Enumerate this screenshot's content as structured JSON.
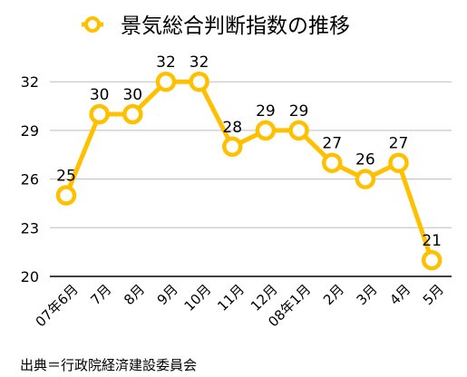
{
  "chart_data": {
    "type": "line",
    "title": "景気総合判断指数の推移",
    "x": [
      "07年6月",
      "7月",
      "8月",
      "9月",
      "10月",
      "11月",
      "12月",
      "08年1月",
      "2月",
      "3月",
      "4月",
      "5月"
    ],
    "series": [
      {
        "name": "",
        "values": [
          25,
          30,
          30,
          32,
          32,
          28,
          29,
          29,
          27,
          26,
          27,
          21
        ]
      }
    ],
    "data_labels": [
      "25",
      "30",
      "30",
      "32",
      "32",
      "28",
      "29",
      "29",
      "27",
      "26",
      "27",
      "21"
    ],
    "yticks": [
      "20",
      "23",
      "26",
      "29",
      "32"
    ],
    "ylim": [
      20,
      33.5
    ],
    "xlabel": "",
    "ylabel": "",
    "grid": true,
    "legend": "top",
    "line_color": "#FFC000"
  },
  "source_note": "出典＝行政院経済建設委員会"
}
